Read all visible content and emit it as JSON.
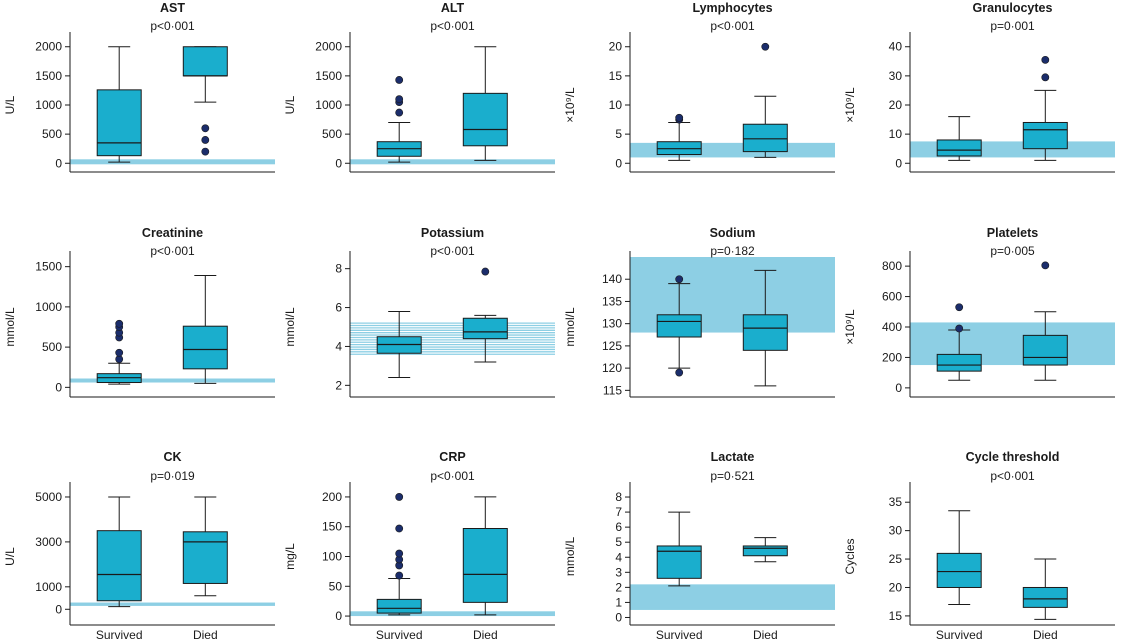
{
  "colors": {
    "box_fill": "#1aaecd",
    "reference_fill": "#8dcfe4",
    "outlier_fill": "#1b2d6b",
    "line": "#1a1a1a"
  },
  "chart_data": [
    {
      "type": "box",
      "title": "AST",
      "pvalue": "p<0·001",
      "ylabel": "U/L",
      "categories": [
        "Survived",
        "Died"
      ],
      "ylim": [
        -150,
        2150
      ],
      "yticks": [
        0,
        500,
        1000,
        1500,
        2000
      ],
      "reference_range": {
        "style": "line",
        "value": 25
      },
      "boxes": [
        {
          "min": 20,
          "q1": 130,
          "median": 350,
          "q3": 1260,
          "max": 2000,
          "outliers": []
        },
        {
          "min": 1050,
          "q1": 1500,
          "median": 1500,
          "q3": 2000,
          "max": 2000,
          "outliers": [
            200,
            400,
            600
          ]
        }
      ]
    },
    {
      "type": "box",
      "title": "ALT",
      "pvalue": "p<0·001",
      "ylabel": "U/L",
      "categories": [
        "Survived",
        "Died"
      ],
      "ylim": [
        -150,
        2150
      ],
      "yticks": [
        0,
        500,
        1000,
        1500,
        2000
      ],
      "reference_range": {
        "style": "line",
        "value": 25
      },
      "boxes": [
        {
          "min": 20,
          "q1": 120,
          "median": 250,
          "q3": 370,
          "max": 700,
          "outliers": [
            870,
            1050,
            1100,
            1430
          ]
        },
        {
          "min": 50,
          "q1": 300,
          "median": 580,
          "q3": 1200,
          "max": 2000,
          "outliers": []
        }
      ]
    },
    {
      "type": "box",
      "title": "Lymphocytes",
      "pvalue": "p<0·001",
      "ylabel": "×10⁹/L",
      "categories": [
        "Survived",
        "Died"
      ],
      "ylim": [
        -1.5,
        21.5
      ],
      "yticks": [
        0,
        5,
        10,
        15,
        20
      ],
      "reference_range": {
        "style": "band",
        "low": 1.0,
        "high": 3.5
      },
      "boxes": [
        {
          "min": 0.5,
          "q1": 1.5,
          "median": 2.5,
          "q3": 3.7,
          "max": 7.0,
          "outliers": [
            7.5,
            7.8
          ]
        },
        {
          "min": 1.0,
          "q1": 2.0,
          "median": 4.2,
          "q3": 6.7,
          "max": 11.5,
          "outliers": [
            20
          ]
        }
      ]
    },
    {
      "type": "box",
      "title": "Granulocytes",
      "pvalue": "p=0·001",
      "ylabel": "×10⁹/L",
      "categories": [
        "Survived",
        "Died"
      ],
      "ylim": [
        -3,
        43
      ],
      "yticks": [
        0,
        10,
        20,
        30,
        40
      ],
      "reference_range": {
        "style": "band",
        "low": 2.0,
        "high": 7.5
      },
      "boxes": [
        {
          "min": 1.0,
          "q1": 2.5,
          "median": 4.5,
          "q3": 8.0,
          "max": 16.0,
          "outliers": []
        },
        {
          "min": 1.0,
          "q1": 5.0,
          "median": 11.5,
          "q3": 14.0,
          "max": 25.0,
          "outliers": [
            29.5,
            35.5
          ]
        }
      ]
    },
    {
      "type": "box",
      "title": "Creatinine",
      "pvalue": "p<0·001",
      "ylabel": "mmol/L",
      "categories": [
        "Survived",
        "Died"
      ],
      "ylim": [
        -120,
        1620
      ],
      "yticks": [
        0,
        500,
        1000,
        1500
      ],
      "reference_range": {
        "style": "band",
        "low": 60,
        "high": 110
      },
      "boxes": [
        {
          "min": 40,
          "q1": 60,
          "median": 120,
          "q3": 170,
          "max": 300,
          "outliers": [
            350,
            430,
            620,
            680,
            750,
            790
          ]
        },
        {
          "min": 50,
          "q1": 230,
          "median": 470,
          "q3": 760,
          "max": 1390,
          "outliers": []
        }
      ]
    },
    {
      "type": "box",
      "title": "Potassium",
      "pvalue": "p<0·001",
      "ylabel": "mmol/L",
      "categories": [
        "Survived",
        "Died"
      ],
      "ylim": [
        1.4,
        8.6
      ],
      "yticks": [
        2,
        4,
        6,
        8
      ],
      "reference_range": {
        "style": "hatch",
        "low": 3.6,
        "high": 5.2
      },
      "boxes": [
        {
          "min": 2.4,
          "q1": 3.65,
          "median": 4.1,
          "q3": 4.5,
          "max": 5.8,
          "outliers": []
        },
        {
          "min": 3.2,
          "q1": 4.4,
          "median": 4.75,
          "q3": 5.45,
          "max": 5.6,
          "outliers": [
            7.85
          ]
        }
      ]
    },
    {
      "type": "box",
      "title": "Sodium",
      "pvalue": "p=0·182",
      "ylabel": "mmol/L",
      "categories": [
        "Survived",
        "Died"
      ],
      "ylim": [
        113.5,
        145
      ],
      "yticks": [
        115,
        120,
        125,
        130,
        135,
        140
      ],
      "reference_range": {
        "style": "band",
        "low": 128,
        "high": 145
      },
      "boxes": [
        {
          "min": 120,
          "q1": 127,
          "median": 130.5,
          "q3": 132,
          "max": 139,
          "outliers": [
            119,
            140
          ]
        },
        {
          "min": 116,
          "q1": 124,
          "median": 129,
          "q3": 132,
          "max": 142,
          "outliers": []
        }
      ]
    },
    {
      "type": "box",
      "title": "Platelets",
      "pvalue": "p=0·005",
      "ylabel": "×10⁹/L",
      "categories": [
        "Survived",
        "Died"
      ],
      "ylim": [
        -60,
        860
      ],
      "yticks": [
        0,
        200,
        400,
        600,
        800
      ],
      "reference_range": {
        "style": "band",
        "low": 150,
        "high": 430
      },
      "boxes": [
        {
          "min": 50,
          "q1": 110,
          "median": 150,
          "q3": 220,
          "max": 380,
          "outliers": [
            390,
            530
          ]
        },
        {
          "min": 50,
          "q1": 150,
          "median": 200,
          "q3": 345,
          "max": 500,
          "outliers": [
            805
          ]
        }
      ]
    },
    {
      "type": "box",
      "title": "CK",
      "pvalue": "p=0·019",
      "ylabel": "U/L",
      "categories": [
        "Survived",
        "Died"
      ],
      "ylim": [
        -700,
        5400
      ],
      "yticks": [
        0,
        1000,
        3000,
        5000
      ],
      "reference_range": {
        "style": "band",
        "low": 150,
        "high": 300
      },
      "boxes": [
        {
          "min": 120,
          "q1": 380,
          "median": 1550,
          "q3": 3500,
          "max": 5000,
          "outliers": []
        },
        {
          "min": 600,
          "q1": 1150,
          "median": 3000,
          "q3": 3450,
          "max": 5000,
          "outliers": []
        }
      ]
    },
    {
      "type": "box",
      "title": "CRP",
      "pvalue": "p<0·001",
      "ylabel": "mg/L",
      "categories": [
        "Survived",
        "Died"
      ],
      "ylim": [
        -15,
        215
      ],
      "yticks": [
        0,
        50,
        100,
        150,
        200
      ],
      "reference_range": {
        "style": "band",
        "low": 0,
        "high": 8
      },
      "boxes": [
        {
          "min": 2,
          "q1": 5,
          "median": 13,
          "q3": 28,
          "max": 63,
          "outliers": [
            68,
            85,
            95,
            105,
            147,
            200
          ]
        },
        {
          "min": 2,
          "q1": 23,
          "median": 70,
          "q3": 147,
          "max": 200,
          "outliers": []
        }
      ]
    },
    {
      "type": "box",
      "title": "Lactate",
      "pvalue": "p=0·521",
      "ylabel": "mmol/L",
      "categories": [
        "Survived",
        "Died"
      ],
      "ylim": [
        -0.5,
        8.6
      ],
      "yticks": [
        0,
        1,
        2,
        3,
        4,
        5,
        6,
        7,
        8
      ],
      "reference_range": {
        "style": "band",
        "low": 0.5,
        "high": 2.2
      },
      "boxes": [
        {
          "min": 2.1,
          "q1": 2.6,
          "median": 4.4,
          "q3": 4.75,
          "max": 7.0,
          "outliers": []
        },
        {
          "min": 3.7,
          "q1": 4.1,
          "median": 4.6,
          "q3": 4.75,
          "max": 5.3,
          "outliers": []
        }
      ]
    },
    {
      "type": "box",
      "title": "Cycle threshold",
      "pvalue": "p<0·001",
      "ylabel": "Cycles",
      "categories": [
        "Survived",
        "Died"
      ],
      "ylim": [
        13.4,
        37.5
      ],
      "yticks": [
        15,
        20,
        25,
        30,
        35
      ],
      "reference_range": null,
      "boxes": [
        {
          "min": 17,
          "q1": 20,
          "median": 22.8,
          "q3": 26,
          "max": 33.5,
          "outliers": []
        },
        {
          "min": 14.4,
          "q1": 16.5,
          "median": 18,
          "q3": 20,
          "max": 25,
          "outliers": []
        }
      ]
    }
  ]
}
